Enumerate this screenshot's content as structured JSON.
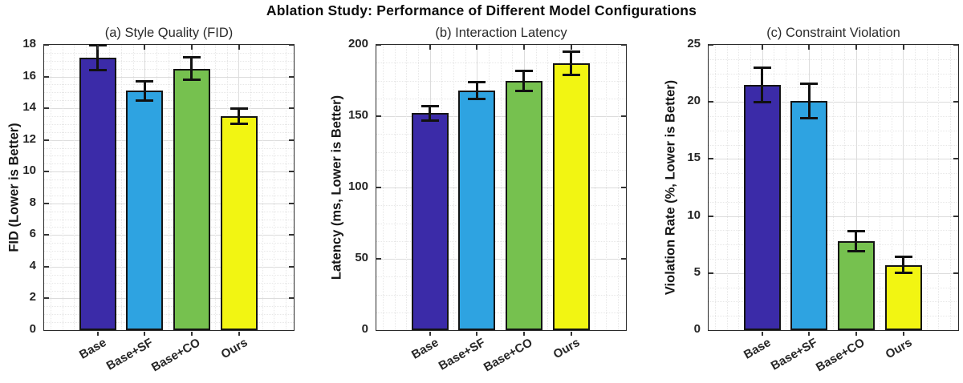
{
  "figure": {
    "title": "Ablation Study: Performance of Different Model Configurations"
  },
  "categories": [
    "Base",
    "Base+SF",
    "Base+CO",
    "Ours"
  ],
  "palette": {
    "bar_fill": [
      "#3B2BA8",
      "#2EA3E1",
      "#76C14F",
      "#F2F512"
    ],
    "bar_edge": "#141414",
    "error_bar": "#111111",
    "grid_major": "#dcdcdc",
    "grid_minor": "#e7e7e7",
    "axis_box": "#2a2a2a",
    "text": "#262626"
  },
  "chart_data": [
    {
      "type": "bar",
      "panel": "a",
      "title": "(a) Style Quality (FID)",
      "ylabel": "FID (Lower is Better)",
      "xlabel": "",
      "categories": [
        "Base",
        "Base+SF",
        "Base+CO",
        "Ours"
      ],
      "values": [
        17.2,
        15.1,
        16.5,
        13.5
      ],
      "errors": [
        0.8,
        0.6,
        0.7,
        0.5
      ],
      "ylim": [
        0,
        18
      ],
      "ytick_step": 2,
      "yticks": [
        0,
        2,
        4,
        6,
        8,
        10,
        12,
        14,
        16,
        18
      ],
      "grid": true,
      "legend": false
    },
    {
      "type": "bar",
      "panel": "b",
      "title": "(b) Interaction Latency",
      "ylabel": "Latency (ms, Lower is Better)",
      "xlabel": "",
      "categories": [
        "Base",
        "Base+SF",
        "Base+CO",
        "Ours"
      ],
      "values": [
        152,
        168,
        175,
        187
      ],
      "errors": [
        5,
        6,
        7,
        8
      ],
      "ylim": [
        0,
        200
      ],
      "ytick_step": 50,
      "yticks": [
        0,
        50,
        100,
        150,
        200
      ],
      "grid": true,
      "legend": false
    },
    {
      "type": "bar",
      "panel": "c",
      "title": "(c) Constraint Violation",
      "ylabel": "Violation Rate (%, Lower is Better)",
      "xlabel": "",
      "categories": [
        "Base",
        "Base+SF",
        "Base+CO",
        "Ours"
      ],
      "values": [
        21.5,
        20.1,
        7.8,
        5.7
      ],
      "errors": [
        1.5,
        1.5,
        0.9,
        0.7
      ],
      "ylim": [
        0,
        25
      ],
      "ytick_step": 5,
      "yticks": [
        0,
        5,
        10,
        15,
        20,
        25
      ],
      "grid": true,
      "legend": false
    }
  ]
}
